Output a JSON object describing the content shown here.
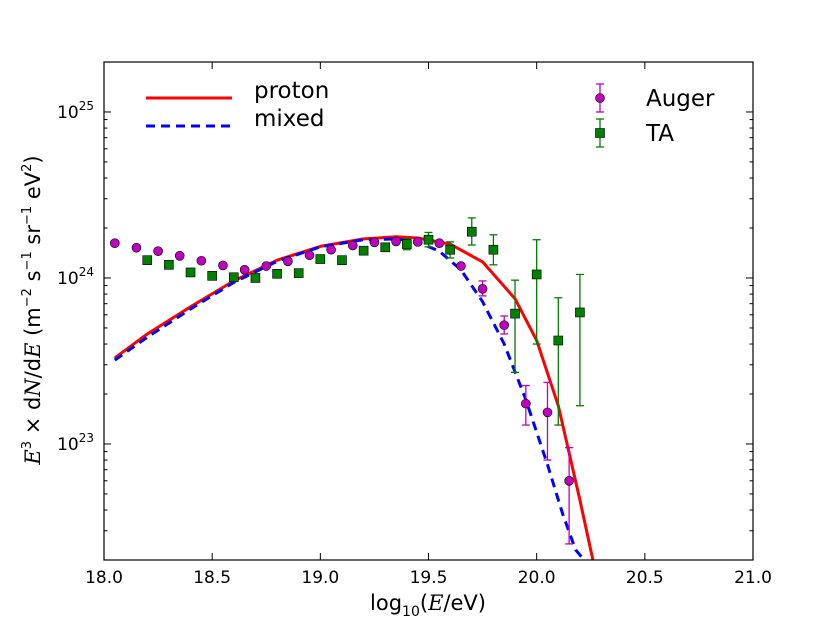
{
  "chart_data": {
    "type": "line",
    "title": "",
    "xlabel": "log10(E/eV)",
    "ylabel": "E3 × dN/dE (m−2 s−1 sr−1 eV2)",
    "xlim": [
      18.0,
      21.0
    ],
    "ylim": [
      2e+22,
      2e+25
    ],
    "yscale": "log",
    "x_ticks": [
      {
        "value": 18.0,
        "label": "18.0"
      },
      {
        "value": 18.5,
        "label": "18.5"
      },
      {
        "value": 19.0,
        "label": "19.0"
      },
      {
        "value": 19.5,
        "label": "19.5"
      },
      {
        "value": 20.0,
        "label": "20.0"
      },
      {
        "value": 20.5,
        "label": "20.5"
      },
      {
        "value": 21.0,
        "label": "21.0"
      }
    ],
    "y_ticks": [
      {
        "value": 1e+23,
        "mant": "10",
        "exp": "23"
      },
      {
        "value": 1e+24,
        "mant": "10",
        "exp": "24"
      },
      {
        "value": 1e+25,
        "mant": "10",
        "exp": "25"
      }
    ],
    "series": [
      {
        "name": "proton",
        "kind": "line",
        "style": "solid",
        "color": "#ff0000",
        "x": [
          18.05,
          18.2,
          18.4,
          18.6,
          18.8,
          19.0,
          19.2,
          19.35,
          19.45,
          19.6,
          19.75,
          19.9,
          20.0,
          20.1,
          20.2,
          20.26
        ],
        "y": [
          3.3e+23,
          4.6e+23,
          6.7e+23,
          9.6e+23,
          1.28e+24,
          1.55e+24,
          1.72e+24,
          1.77e+24,
          1.74e+24,
          1.6e+24,
          1.25e+24,
          7.5e+23,
          4.2e+23,
          1.7e+23,
          4.6e+22,
          2e+22
        ]
      },
      {
        "name": "mixed",
        "kind": "line",
        "style": "dashed",
        "color": "#0000ff",
        "x": [
          18.05,
          18.2,
          18.4,
          18.6,
          18.8,
          19.0,
          19.2,
          19.35,
          19.45,
          19.55,
          19.65,
          19.75,
          19.85,
          19.95,
          20.05,
          20.12,
          20.18,
          20.22
        ],
        "y": [
          3.2e+23,
          4.4e+23,
          6.5e+23,
          9.4e+23,
          1.26e+24,
          1.54e+24,
          1.7e+24,
          1.72e+24,
          1.65e+24,
          1.45e+24,
          1.12e+24,
          7.2e+23,
          4e+23,
          1.85e+23,
          7.5e+22,
          3.8e+22,
          2.3e+22,
          2e+22
        ]
      },
      {
        "name": "Auger",
        "kind": "points",
        "marker": "circle",
        "color": "#bf00bf",
        "x": [
          18.05,
          18.15,
          18.25,
          18.35,
          18.45,
          18.55,
          18.65,
          18.75,
          18.85,
          18.95,
          19.05,
          19.15,
          19.25,
          19.35,
          19.45,
          19.55,
          19.65,
          19.75,
          19.85,
          19.95,
          20.05,
          20.15
        ],
        "y": [
          1.62e+24,
          1.52e+24,
          1.45e+24,
          1.36e+24,
          1.27e+24,
          1.19e+24,
          1.12e+24,
          1.18e+24,
          1.26e+24,
          1.37e+24,
          1.48e+24,
          1.57e+24,
          1.64e+24,
          1.66e+24,
          1.65e+24,
          1.62e+24,
          1.18e+24,
          8.6e+23,
          5.2e+23,
          1.75e+23,
          1.55e+23,
          6e+22
        ],
        "err_low": [
          null,
          null,
          null,
          null,
          null,
          null,
          null,
          null,
          null,
          null,
          null,
          null,
          null,
          null,
          null,
          null,
          null,
          7.8e+23,
          4.6e+23,
          1.3e+23,
          8e+22,
          2.5e+22
        ],
        "err_high": [
          null,
          null,
          null,
          null,
          null,
          null,
          null,
          null,
          null,
          null,
          null,
          null,
          null,
          null,
          null,
          null,
          null,
          9.6e+23,
          5.9e+23,
          2.25e+23,
          2.35e+23,
          9.5e+22
        ]
      },
      {
        "name": "TA",
        "kind": "points",
        "marker": "square",
        "color": "#007f00",
        "x": [
          18.2,
          18.3,
          18.4,
          18.5,
          18.6,
          18.7,
          18.8,
          18.9,
          19.0,
          19.1,
          19.2,
          19.3,
          19.4,
          19.5,
          19.6,
          19.7,
          19.8,
          19.9,
          20.0,
          20.1,
          20.2
        ],
        "y": [
          1.28e+24,
          1.2e+24,
          1.08e+24,
          1.03e+24,
          1.01e+24,
          1e+24,
          1.06e+24,
          1.07e+24,
          1.3e+24,
          1.28e+24,
          1.46e+24,
          1.53e+24,
          1.6e+24,
          1.7e+24,
          1.48e+24,
          1.9e+24,
          1.48e+24,
          6.1e+23,
          1.05e+24,
          4.2e+23,
          6.2e+23
        ],
        "err_low": [
          null,
          null,
          null,
          null,
          null,
          null,
          null,
          null,
          null,
          null,
          null,
          null,
          1.48e+24,
          1.54e+24,
          1.32e+24,
          1.58e+24,
          1.2e+24,
          2.7e+23,
          4e+23,
          1.3e+23,
          1.7e+23
        ],
        "err_high": [
          null,
          null,
          null,
          null,
          null,
          null,
          null,
          null,
          null,
          null,
          null,
          null,
          1.72e+24,
          1.88e+24,
          1.65e+24,
          2.3e+24,
          1.82e+24,
          9.7e+23,
          1.7e+24,
          7.6e+23,
          1.05e+24
        ]
      }
    ],
    "legend": {
      "left": [
        {
          "label": "proton"
        },
        {
          "label": "mixed"
        }
      ],
      "right": [
        {
          "label": "Auger"
        },
        {
          "label": "TA"
        }
      ],
      "placement": "top"
    }
  }
}
